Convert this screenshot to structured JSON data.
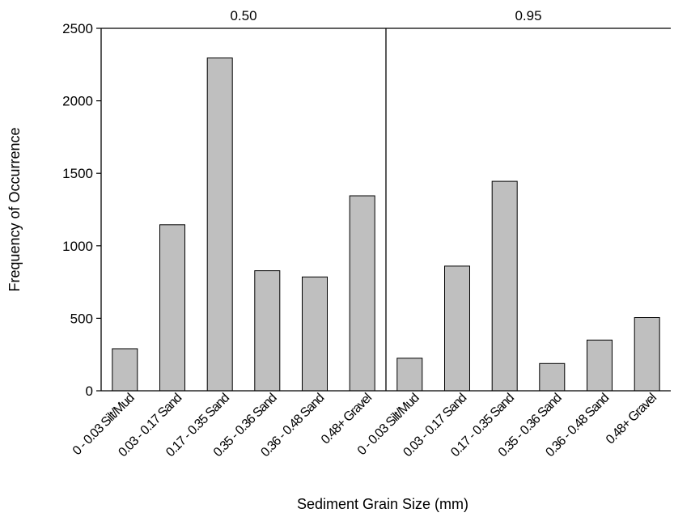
{
  "chart_data": {
    "type": "bar",
    "xlabel": "Sediment Grain Size (mm)",
    "ylabel": "Frequency of Occurrence",
    "ylim": [
      0,
      2500
    ],
    "yticks": [
      0,
      500,
      1000,
      1500,
      2000,
      2500
    ],
    "grid": false,
    "categories": [
      "0 - 0.03 Silt/Mud",
      "0.03 - 0.17 Sand",
      "0.17 - 0.35 Sand",
      "0.35 - 0.36 Sand",
      "0.36 - 0.48 Sand",
      "0.48+ Gravel"
    ],
    "panels": [
      {
        "label": "0.50",
        "values": [
          290,
          1145,
          2295,
          828,
          785,
          1345
        ]
      },
      {
        "label": "0.95",
        "values": [
          225,
          860,
          1445,
          188,
          350,
          505
        ]
      }
    ]
  }
}
